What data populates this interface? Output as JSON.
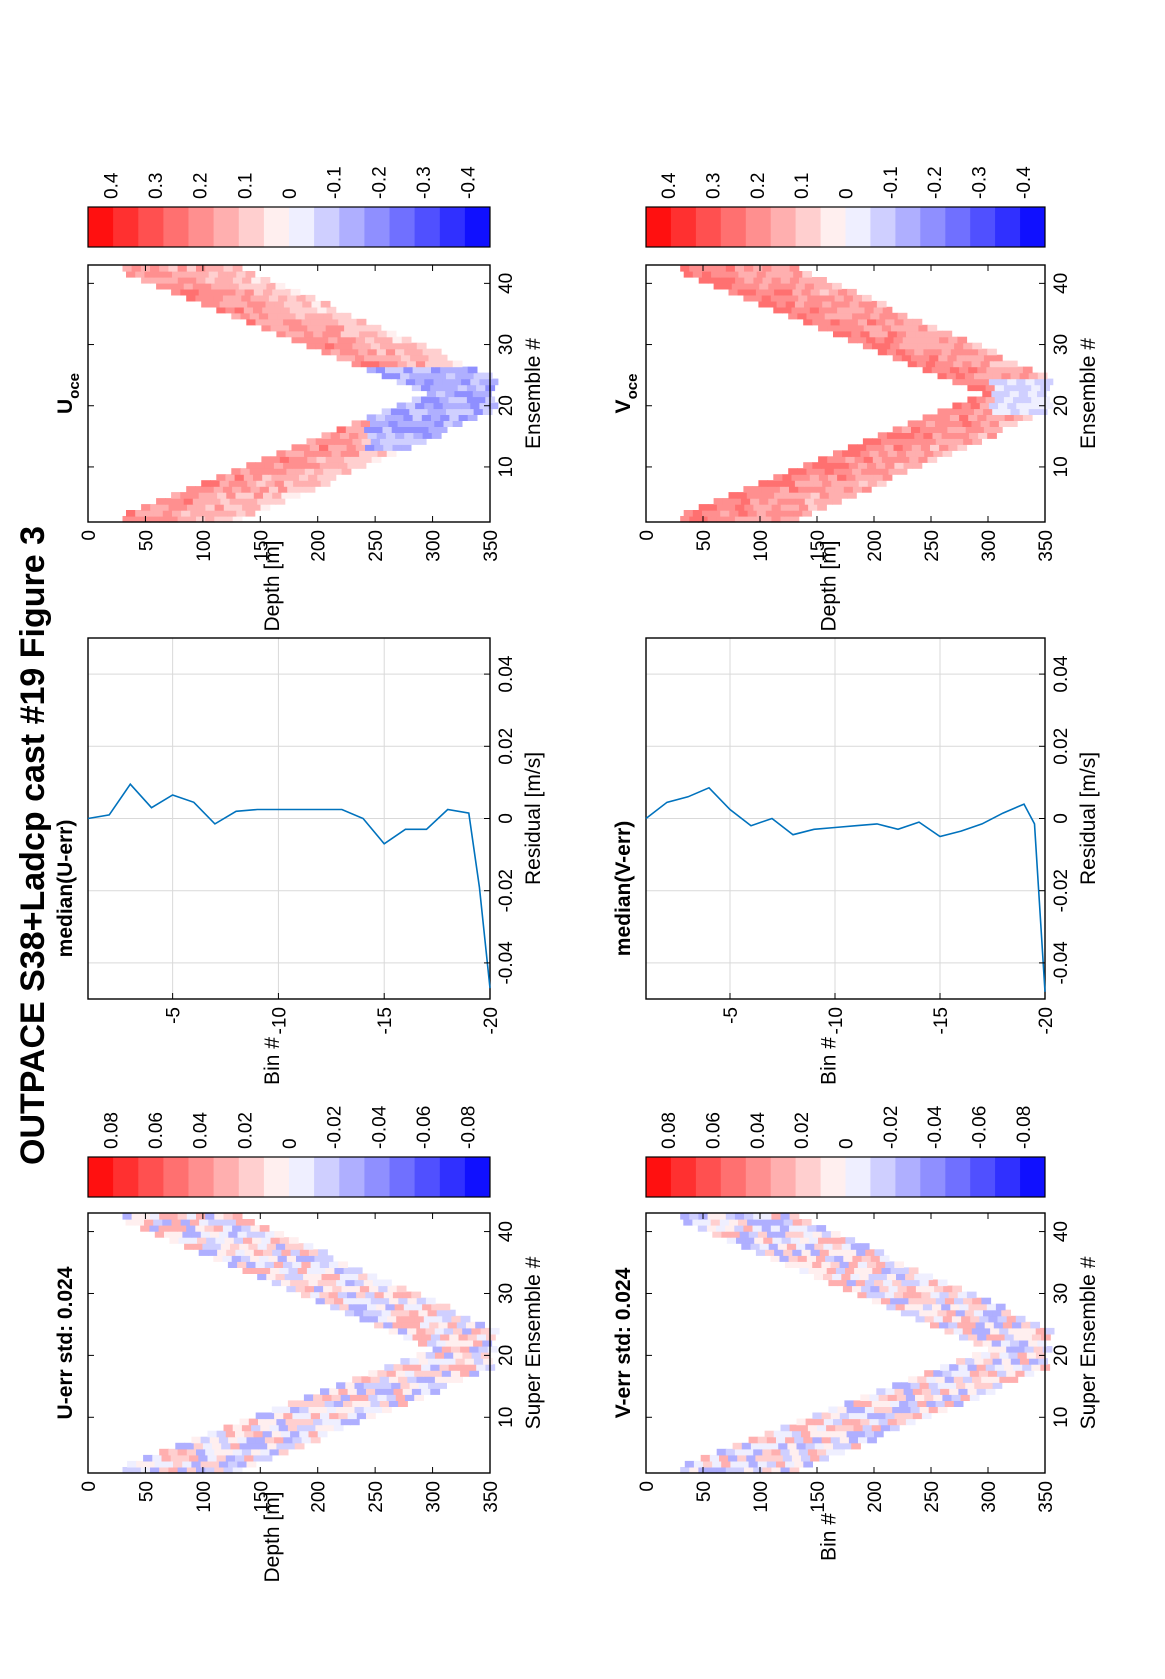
{
  "figure_title": "OUTPACE S38+Ladcp cast #19  Figure 3",
  "colors": {
    "axis": "#000000",
    "grid": "#d9d9d9",
    "line": "#0072bd",
    "pos_max": "#ff0000",
    "neg_max": "#0000ff",
    "mid": "#ffffff"
  },
  "chart_data": [
    {
      "id": "u-err",
      "type": "heatmap",
      "title": "U-err std: 0.024",
      "xlabel": "Super Ensemble #",
      "ylabel": "Depth [m]",
      "xlim": [
        1,
        43
      ],
      "xticks": [
        10,
        20,
        30,
        40
      ],
      "ylim": [
        0,
        350
      ],
      "yticks": [
        0,
        50,
        100,
        150,
        200,
        250,
        300,
        350
      ],
      "colorbar": {
        "ticks": [
          "0.08",
          "0.06",
          "0.04",
          "0.02",
          "0",
          "-0.02",
          "-0.04",
          "-0.06",
          "-0.08"
        ],
        "range": [
          -0.08,
          0.08
        ],
        "levels": 16
      },
      "profile": {
        "apex_x": 21,
        "apex_depth": 345,
        "surface_depth": 40,
        "band_width": 90
      },
      "seed": 11,
      "amplitude": 0.03,
      "pattern": "noise"
    },
    {
      "id": "median-u-err",
      "type": "line",
      "title": "median(U-err)",
      "xlabel": "Residual [m/s]",
      "ylabel": "Bin #",
      "xlim": [
        -0.05,
        0.05
      ],
      "xticks": [
        "-0.04",
        "-0.02",
        "0",
        "0.02",
        "0.04"
      ],
      "ylim": [
        -20,
        -1
      ],
      "yticks": [
        "-5",
        "-10",
        "-15",
        "-20"
      ],
      "grid": true,
      "x": [
        0.0,
        0.001,
        0.0095,
        0.003,
        0.0065,
        0.0045,
        -0.0015,
        0.002,
        0.0025,
        0.0025,
        0.0025,
        0.0025,
        0.0025,
        0.0,
        -0.007,
        -0.003,
        -0.003,
        0.0025,
        0.0015,
        -0.019,
        -0.047
      ],
      "y": [
        -1,
        -2,
        -3,
        -4,
        -5,
        -6,
        -7,
        -8,
        -9,
        -10,
        -11,
        -12,
        -13,
        -14,
        -15,
        -16,
        -17,
        -18,
        -19,
        -19.5,
        -20
      ]
    },
    {
      "id": "u-oce",
      "type": "heatmap",
      "title": "U",
      "title_subscript": "oce",
      "xlabel": "Ensemble #",
      "ylabel": "Depth [m]",
      "xlim": [
        1,
        43
      ],
      "xticks": [
        10,
        20,
        30,
        40
      ],
      "ylim": [
        0,
        350
      ],
      "yticks": [
        0,
        50,
        100,
        150,
        200,
        250,
        300,
        350
      ],
      "colorbar": {
        "ticks": [
          "0.4",
          "0.3",
          "0.2",
          "0.1",
          "0",
          "-0.1",
          "-0.2",
          "-0.3",
          "-0.4"
        ],
        "range": [
          -0.4,
          0.4
        ],
        "levels": 16
      },
      "profile": {
        "apex_x": 22,
        "apex_depth": 340,
        "surface_depth": 40,
        "band_width": 90
      },
      "seed": 23,
      "amplitude": 0.05,
      "pattern": "u"
    },
    {
      "id": "v-err",
      "type": "heatmap",
      "title": "V-err std: 0.024",
      "xlabel": "Super Ensemble #",
      "ylabel": "Bin #",
      "xlim": [
        1,
        43
      ],
      "xticks": [
        10,
        20,
        30,
        40
      ],
      "ylim": [
        0,
        350
      ],
      "yticks": [
        0,
        50,
        100,
        150,
        200,
        250,
        300,
        350
      ],
      "colorbar": {
        "ticks": [
          "0.08",
          "0.06",
          "0.04",
          "0.02",
          "0",
          "-0.02",
          "-0.04",
          "-0.06",
          "-0.08"
        ],
        "range": [
          -0.08,
          0.08
        ],
        "levels": 16
      },
      "profile": {
        "apex_x": 21,
        "apex_depth": 345,
        "surface_depth": 40,
        "band_width": 90
      },
      "seed": 37,
      "amplitude": 0.03,
      "pattern": "noise"
    },
    {
      "id": "median-v-err",
      "type": "line",
      "title": "median(V-err)",
      "xlabel": "Residual [m/s]",
      "ylabel": "Bin #",
      "xlim": [
        -0.05,
        0.05
      ],
      "xticks": [
        "-0.04",
        "-0.02",
        "0",
        "0.02",
        "0.04"
      ],
      "ylim": [
        -20,
        -1
      ],
      "yticks": [
        "-5",
        "-10",
        "-15",
        "-20"
      ],
      "grid": true,
      "x": [
        0.0,
        0.0045,
        0.006,
        0.0085,
        0.0025,
        -0.002,
        0.0,
        -0.0045,
        -0.003,
        -0.0025,
        -0.002,
        -0.0015,
        -0.003,
        -0.001,
        -0.005,
        -0.0035,
        -0.0015,
        0.0015,
        0.004,
        -0.0015,
        -0.048
      ],
      "y": [
        -1,
        -2,
        -3,
        -4,
        -5,
        -6,
        -7,
        -8,
        -9,
        -10,
        -11,
        -12,
        -13,
        -14,
        -15,
        -16,
        -17,
        -18,
        -19,
        -19.5,
        -20
      ]
    },
    {
      "id": "v-oce",
      "type": "heatmap",
      "title": "V",
      "title_subscript": "oce",
      "xlabel": "Ensemble #",
      "ylabel": "Depth [m]",
      "xlim": [
        1,
        43
      ],
      "xticks": [
        10,
        20,
        30,
        40
      ],
      "ylim": [
        0,
        350
      ],
      "yticks": [
        0,
        50,
        100,
        150,
        200,
        250,
        300,
        350
      ],
      "colorbar": {
        "ticks": [
          "0.4",
          "0.3",
          "0.2",
          "0.1",
          "0",
          "-0.1",
          "-0.2",
          "-0.3",
          "-0.4"
        ],
        "range": [
          -0.4,
          0.4
        ],
        "levels": 16
      },
      "profile": {
        "apex_x": 22,
        "apex_depth": 340,
        "surface_depth": 40,
        "band_width": 90
      },
      "seed": 51,
      "amplitude": 0.05,
      "pattern": "v"
    }
  ]
}
